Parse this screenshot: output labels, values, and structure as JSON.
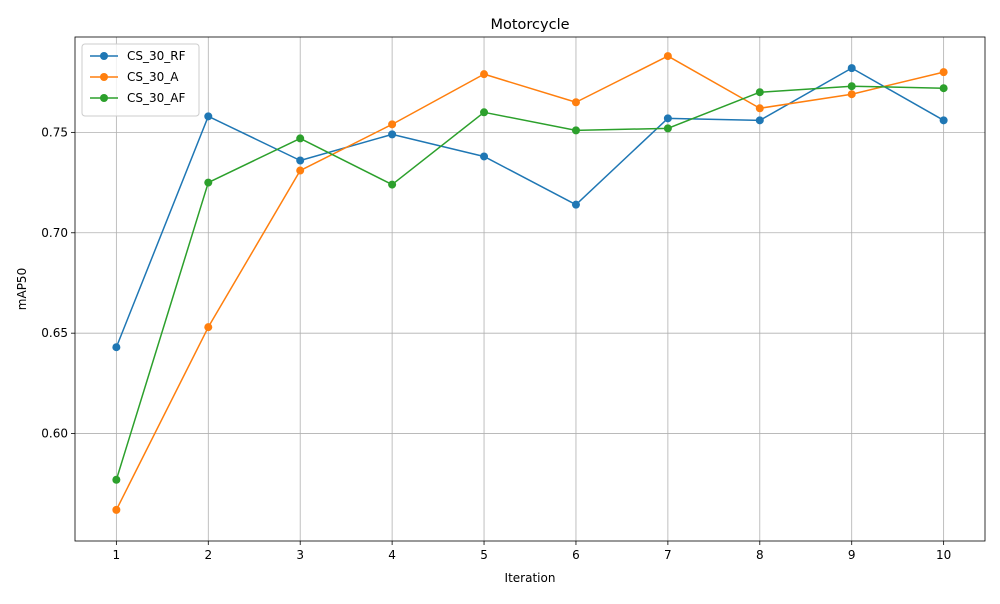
{
  "chart_data": {
    "type": "line",
    "title": "Motorcycle",
    "xlabel": "Iteration",
    "ylabel": "mAP50",
    "x": [
      1,
      2,
      3,
      4,
      5,
      6,
      7,
      8,
      9,
      10
    ],
    "x_tick_labels": [
      "1",
      "2",
      "3",
      "4",
      "5",
      "6",
      "7",
      "8",
      "9",
      "10"
    ],
    "y_ticks": [
      0.6,
      0.65,
      0.7,
      0.75
    ],
    "y_tick_labels": [
      "0.60",
      "0.65",
      "0.70",
      "0.75"
    ],
    "xlim": [
      0.55,
      10.45
    ],
    "ylim": [
      0.5465,
      0.7975
    ],
    "grid": true,
    "legend_position": "upper-left",
    "marker": "circle",
    "series": [
      {
        "name": "CS_30_RF",
        "color": "#1f77b4",
        "values": [
          0.643,
          0.758,
          0.736,
          0.749,
          0.738,
          0.714,
          0.757,
          0.756,
          0.782,
          0.756
        ]
      },
      {
        "name": "CS_30_A",
        "color": "#ff7f0e",
        "values": [
          0.562,
          0.653,
          0.731,
          0.754,
          0.779,
          0.765,
          0.788,
          0.762,
          0.769,
          0.78
        ]
      },
      {
        "name": "CS_30_AF",
        "color": "#2ca02c",
        "values": [
          0.577,
          0.725,
          0.747,
          0.724,
          0.76,
          0.751,
          0.752,
          0.77,
          0.773,
          0.772
        ]
      }
    ]
  }
}
